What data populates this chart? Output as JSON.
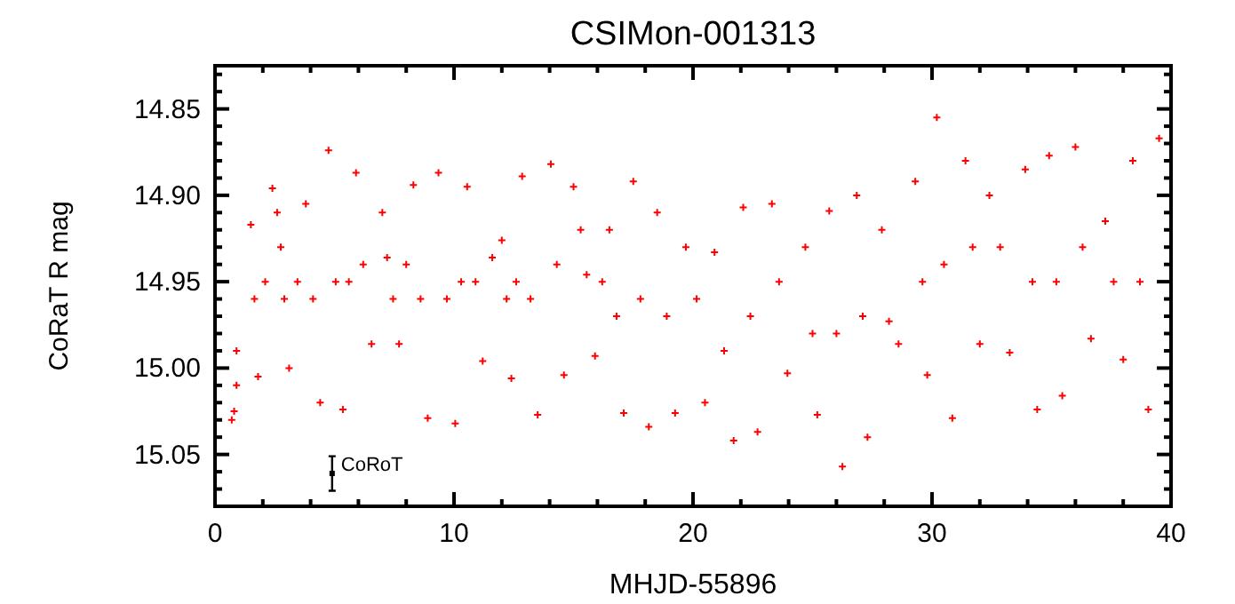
{
  "chart_data": {
    "type": "scatter",
    "title": "CSIMon-001313",
    "xlabel": "MHJD-55896",
    "ylabel": "CoRaT R mag",
    "marker": "cross",
    "xlim": [
      0,
      40
    ],
    "ylim": [
      15.08,
      14.825
    ],
    "xticks": [
      0,
      {
        "value": 2,
        "label": null
      },
      {
        "value": 4,
        "label": null
      },
      {
        "value": 6,
        "label": null
      },
      {
        "value": 8,
        "label": null
      },
      10,
      {
        "value": 12,
        "label": null
      },
      {
        "value": 14,
        "label": null
      },
      {
        "value": 16,
        "label": null
      },
      {
        "value": 18,
        "label": null
      },
      20,
      {
        "value": 22,
        "label": null
      },
      {
        "value": 24,
        "label": null
      },
      {
        "value": 26,
        "label": null
      },
      {
        "value": 28,
        "label": null
      },
      30,
      {
        "value": 32,
        "label": null
      },
      {
        "value": 34,
        "label": null
      },
      {
        "value": 36,
        "label": null
      },
      {
        "value": 38,
        "label": null
      },
      40
    ],
    "yticks": [
      {
        "value": 14.83,
        "label": null
      },
      {
        "value": 14.84,
        "label": null
      },
      {
        "value": 14.85,
        "label": "14.85"
      },
      {
        "value": 14.86,
        "label": null
      },
      {
        "value": 14.87,
        "label": null
      },
      {
        "value": 14.88,
        "label": null
      },
      {
        "value": 14.89,
        "label": null
      },
      {
        "value": 14.9,
        "label": "14.90"
      },
      {
        "value": 14.91,
        "label": null
      },
      {
        "value": 14.92,
        "label": null
      },
      {
        "value": 14.93,
        "label": null
      },
      {
        "value": 14.94,
        "label": null
      },
      {
        "value": 14.95,
        "label": "14.95"
      },
      {
        "value": 14.96,
        "label": null
      },
      {
        "value": 14.97,
        "label": null
      },
      {
        "value": 14.98,
        "label": null
      },
      {
        "value": 14.99,
        "label": null
      },
      {
        "value": 15.0,
        "label": "15.00"
      },
      {
        "value": 15.01,
        "label": null
      },
      {
        "value": 15.02,
        "label": null
      },
      {
        "value": 15.03,
        "label": null
      },
      {
        "value": 15.04,
        "label": null
      },
      {
        "value": 15.05,
        "label": "15.05"
      },
      {
        "value": 15.06,
        "label": null
      },
      {
        "value": 15.07,
        "label": null
      },
      {
        "value": 15.08,
        "label": null
      }
    ],
    "series": [
      {
        "color": "#ff0000",
        "x": [
          0.7,
          0.8,
          0.9,
          0.9,
          1.5,
          1.65,
          1.8,
          2.1,
          2.4,
          2.6,
          2.75,
          2.9,
          3.1,
          3.45,
          3.8,
          4.1,
          4.4,
          4.75,
          5.05,
          5.35,
          5.6,
          5.9,
          6.2,
          6.55,
          7.0,
          7.2,
          7.45,
          7.7,
          8.0,
          8.3,
          8.6,
          8.9,
          9.35,
          9.7,
          10.05,
          10.3,
          10.55,
          10.9,
          11.2,
          11.6,
          12.0,
          12.2,
          12.4,
          12.6,
          12.85,
          13.2,
          13.5,
          14.05,
          14.3,
          14.6,
          15.0,
          15.3,
          15.55,
          15.9,
          16.2,
          16.5,
          16.8,
          17.1,
          17.5,
          17.8,
          18.15,
          18.5,
          18.9,
          19.25,
          19.7,
          20.15,
          20.5,
          20.9,
          21.3,
          21.7,
          22.1,
          22.4,
          22.7,
          23.3,
          23.6,
          23.95,
          24.7,
          25.0,
          25.2,
          25.7,
          26.0,
          26.25,
          26.85,
          27.1,
          27.3,
          27.9,
          28.2,
          28.6,
          29.3,
          29.6,
          29.8,
          30.2,
          30.5,
          30.85,
          31.4,
          31.7,
          32.0,
          32.4,
          32.85,
          33.25,
          33.9,
          34.2,
          34.4,
          34.9,
          35.2,
          35.45,
          36.0,
          36.3,
          36.65,
          37.25,
          37.6,
          38.0,
          38.4,
          38.7,
          39.05,
          39.5
        ],
        "values": [
          15.03,
          15.025,
          15.01,
          14.99,
          14.917,
          14.96,
          15.005,
          14.95,
          14.896,
          14.91,
          14.93,
          14.96,
          15.0,
          14.95,
          14.905,
          14.96,
          15.02,
          14.874,
          14.95,
          15.024,
          14.95,
          14.887,
          14.94,
          14.986,
          14.91,
          14.936,
          14.96,
          14.986,
          14.94,
          14.894,
          14.96,
          15.029,
          14.887,
          14.96,
          15.032,
          14.95,
          14.895,
          14.95,
          14.996,
          14.936,
          14.926,
          14.96,
          15.006,
          14.95,
          14.889,
          14.96,
          15.027,
          14.882,
          14.94,
          15.004,
          14.895,
          14.92,
          14.946,
          14.993,
          14.95,
          14.92,
          14.97,
          15.026,
          14.892,
          14.96,
          15.034,
          14.91,
          14.97,
          15.026,
          14.93,
          14.96,
          15.02,
          14.933,
          14.99,
          15.042,
          14.907,
          14.97,
          15.037,
          14.905,
          14.95,
          15.003,
          14.93,
          14.98,
          15.027,
          14.909,
          14.98,
          15.057,
          14.9,
          14.97,
          15.04,
          14.92,
          14.973,
          14.986,
          14.892,
          14.95,
          15.004,
          14.855,
          14.94,
          15.029,
          14.88,
          14.93,
          14.986,
          14.9,
          14.93,
          14.991,
          14.885,
          14.95,
          15.024,
          14.877,
          14.95,
          15.016,
          14.872,
          14.93,
          14.983,
          14.915,
          14.95,
          14.995,
          14.88,
          14.95,
          15.024,
          14.867
        ]
      },
      {
        "name": "CoRoT",
        "color": "#000000",
        "marker": "square",
        "x": [
          4.9
        ],
        "values": [
          15.061
        ],
        "errors": [
          0.01
        ]
      }
    ]
  }
}
